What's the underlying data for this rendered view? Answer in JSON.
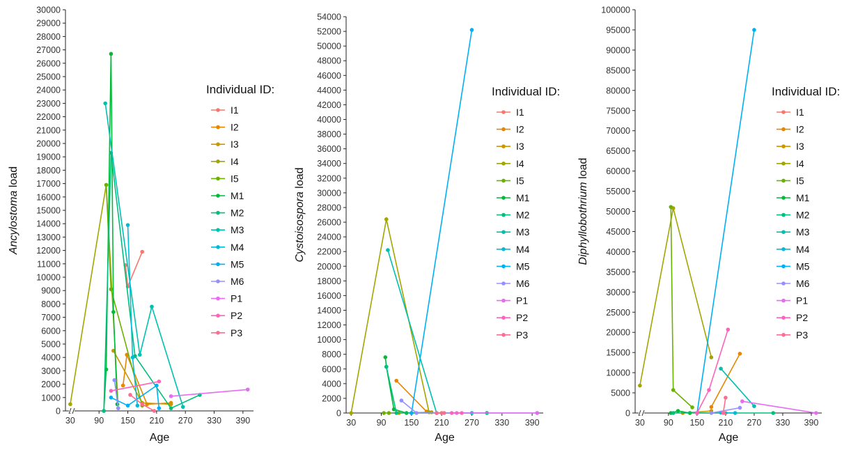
{
  "legend": {
    "title": "Individual ID:",
    "entries": [
      {
        "id": "I1",
        "color": "#F8766D"
      },
      {
        "id": "I2",
        "color": "#E58700"
      },
      {
        "id": "I3",
        "color": "#C99800"
      },
      {
        "id": "I4",
        "color": "#A3A500"
      },
      {
        "id": "I5",
        "color": "#6BB100"
      },
      {
        "id": "M1",
        "color": "#00BA38"
      },
      {
        "id": "M2",
        "color": "#00BF7D"
      },
      {
        "id": "M3",
        "color": "#00C0AF"
      },
      {
        "id": "M4",
        "color": "#00BCD8"
      },
      {
        "id": "M5",
        "color": "#00B0F6"
      },
      {
        "id": "M6",
        "color": "#9590FF"
      },
      {
        "id": "P1",
        "color": "#E76BF3"
      },
      {
        "id": "P2",
        "color": "#FF62BC"
      },
      {
        "id": "P3",
        "color": "#FF6C91"
      }
    ]
  },
  "chart_data": [
    {
      "type": "line",
      "xlabel": "Age",
      "ylabel_italic": "Ancylostoma",
      "ylabel_suffix": " load",
      "xticks": [
        30,
        90,
        150,
        210,
        270,
        330,
        390
      ],
      "xlim": [
        20,
        412
      ],
      "ylim": [
        0,
        30000
      ],
      "ytick_step": 1000,
      "axis_break": true,
      "series": [
        {
          "name": "I1",
          "points": [
            [
              145,
              10900
            ],
            [
              150,
              9300
            ],
            [
              180,
              11900
            ]
          ]
        },
        {
          "name": "I2",
          "points": [
            [
              140,
              1900
            ],
            [
              148,
              4200
            ],
            [
              190,
              500
            ],
            [
              240,
              600
            ]
          ]
        },
        {
          "name": "I3",
          "points": [
            [
              120,
              4500
            ],
            [
              180,
              600
            ],
            [
              240,
              500
            ]
          ]
        },
        {
          "name": "I4",
          "points": [
            [
              30,
              500
            ],
            [
              105,
              16900
            ],
            [
              130,
              200
            ]
          ]
        },
        {
          "name": "I5",
          "points": [
            [
              105,
              16900
            ],
            [
              115,
              9100
            ],
            [
              180,
              400
            ]
          ]
        },
        {
          "name": "M1",
          "points": [
            [
              100,
              0
            ],
            [
              105,
              3100
            ],
            [
              115,
              26700
            ],
            [
              120,
              7400
            ],
            [
              128,
              500
            ]
          ]
        },
        {
          "name": "M2",
          "points": [
            [
              100,
              0
            ],
            [
              115,
              19300
            ],
            [
              165,
              4100
            ],
            [
              240,
              200
            ],
            [
              300,
              1200
            ]
          ]
        },
        {
          "name": "M3",
          "points": [
            [
              103,
              23000
            ],
            [
              175,
              4200
            ],
            [
              200,
              7800
            ],
            [
              265,
              300
            ]
          ]
        },
        {
          "name": "M4",
          "points": [
            [
              150,
              13900
            ],
            [
              160,
              4000
            ],
            [
              170,
              400
            ]
          ]
        },
        {
          "name": "M5",
          "points": [
            [
              115,
              1000
            ],
            [
              150,
              400
            ],
            [
              210,
              1900
            ],
            [
              215,
              200
            ]
          ]
        },
        {
          "name": "M6",
          "points": [
            [
              122,
              2300
            ],
            [
              130,
              200
            ]
          ]
        },
        {
          "name": "P1",
          "points": [
            [
              240,
              1100
            ],
            [
              400,
              1600
            ]
          ]
        },
        {
          "name": "P2",
          "points": [
            [
              115,
              1500
            ],
            [
              215,
              2200
            ]
          ]
        },
        {
          "name": "P3",
          "points": [
            [
              155,
              1200
            ],
            [
              180,
              500
            ],
            [
              205,
              0
            ]
          ]
        }
      ]
    },
    {
      "type": "line",
      "xlabel": "Age",
      "ylabel_italic": "Cystoisospora",
      "ylabel_suffix": " load",
      "xticks": [
        30,
        90,
        150,
        210,
        270,
        330,
        390
      ],
      "xlim": [
        20,
        412
      ],
      "ylim": [
        0,
        54000
      ],
      "ytick_step": 2000,
      "axis_break": false,
      "series": [
        {
          "name": "I1",
          "points": [
            [
              150,
              0
            ],
            [
              210,
              0
            ]
          ]
        },
        {
          "name": "I2",
          "points": [
            [
              120,
              4400
            ],
            [
              180,
              200
            ]
          ]
        },
        {
          "name": "I3",
          "points": [
            [
              125,
              0
            ],
            [
              190,
              100
            ]
          ]
        },
        {
          "name": "I4",
          "points": [
            [
              30,
              0
            ],
            [
              100,
              26400
            ],
            [
              185,
              100
            ]
          ]
        },
        {
          "name": "I5",
          "points": [
            [
              95,
              0
            ],
            [
              105,
              0
            ]
          ]
        },
        {
          "name": "M1",
          "points": [
            [
              98,
              7600
            ],
            [
              100,
              6300
            ],
            [
              115,
              500
            ],
            [
              140,
              0
            ]
          ]
        },
        {
          "name": "M2",
          "points": [
            [
              100,
              6300
            ],
            [
              120,
              0
            ],
            [
              300,
              0
            ]
          ]
        },
        {
          "name": "M3",
          "points": [
            [
              103,
              22200
            ],
            [
              200,
              0
            ]
          ]
        },
        {
          "name": "M4",
          "points": [
            [
              200,
              0
            ],
            [
              270,
              0
            ]
          ]
        },
        {
          "name": "M5",
          "points": [
            [
              150,
              0
            ],
            [
              270,
              52200
            ]
          ]
        },
        {
          "name": "M6",
          "points": [
            [
              130,
              1700
            ],
            [
              160,
              0
            ],
            [
              400,
              0
            ]
          ]
        },
        {
          "name": "P1",
          "points": [
            [
              240,
              0
            ],
            [
              400,
              0
            ]
          ]
        },
        {
          "name": "P2",
          "points": [
            [
              230,
              0
            ],
            [
              250,
              0
            ]
          ]
        },
        {
          "name": "P3",
          "points": [
            [
              200,
              0
            ],
            [
              215,
              0
            ]
          ]
        }
      ]
    },
    {
      "type": "line",
      "xlabel": "Age",
      "ylabel_italic": "Diphyllobothrium",
      "ylabel_suffix": " load",
      "xticks": [
        30,
        90,
        150,
        210,
        270,
        330,
        390
      ],
      "xlim": [
        20,
        412
      ],
      "ylim": [
        0,
        100000
      ],
      "ytick_step": 5000,
      "axis_break": true,
      "series": [
        {
          "name": "I1",
          "points": [
            [
              150,
              0
            ],
            [
              210,
              0
            ]
          ]
        },
        {
          "name": "I2",
          "points": [
            [
              180,
              1500
            ],
            [
              240,
              14700
            ]
          ]
        },
        {
          "name": "I3",
          "points": [
            [
              120,
              0
            ],
            [
              180,
              500
            ]
          ]
        },
        {
          "name": "I4",
          "points": [
            [
              30,
              6800
            ],
            [
              100,
              50800
            ],
            [
              180,
              13800
            ]
          ]
        },
        {
          "name": "I5",
          "points": [
            [
              95,
              51100
            ],
            [
              100,
              5700
            ],
            [
              140,
              1400
            ]
          ]
        },
        {
          "name": "M1",
          "points": [
            [
              95,
              0
            ],
            [
              110,
              500
            ],
            [
              135,
              0
            ]
          ]
        },
        {
          "name": "M2",
          "points": [
            [
              100,
              0
            ],
            [
              310,
              0
            ]
          ]
        },
        {
          "name": "M3",
          "points": [
            [
              200,
              11000
            ],
            [
              270,
              1700
            ]
          ]
        },
        {
          "name": "M4",
          "points": [
            [
              200,
              100
            ],
            [
              230,
              0
            ]
          ]
        },
        {
          "name": "M5",
          "points": [
            [
              150,
              0
            ],
            [
              270,
              95000
            ]
          ]
        },
        {
          "name": "M6",
          "points": [
            [
              180,
              0
            ],
            [
              240,
              1300
            ]
          ]
        },
        {
          "name": "P1",
          "points": [
            [
              245,
              2900
            ],
            [
              400,
              0
            ]
          ]
        },
        {
          "name": "P2",
          "points": [
            [
              150,
              0
            ],
            [
              175,
              5700
            ],
            [
              215,
              20700
            ]
          ]
        },
        {
          "name": "P3",
          "points": [
            [
              205,
              0
            ],
            [
              210,
              3800
            ]
          ]
        }
      ]
    }
  ]
}
